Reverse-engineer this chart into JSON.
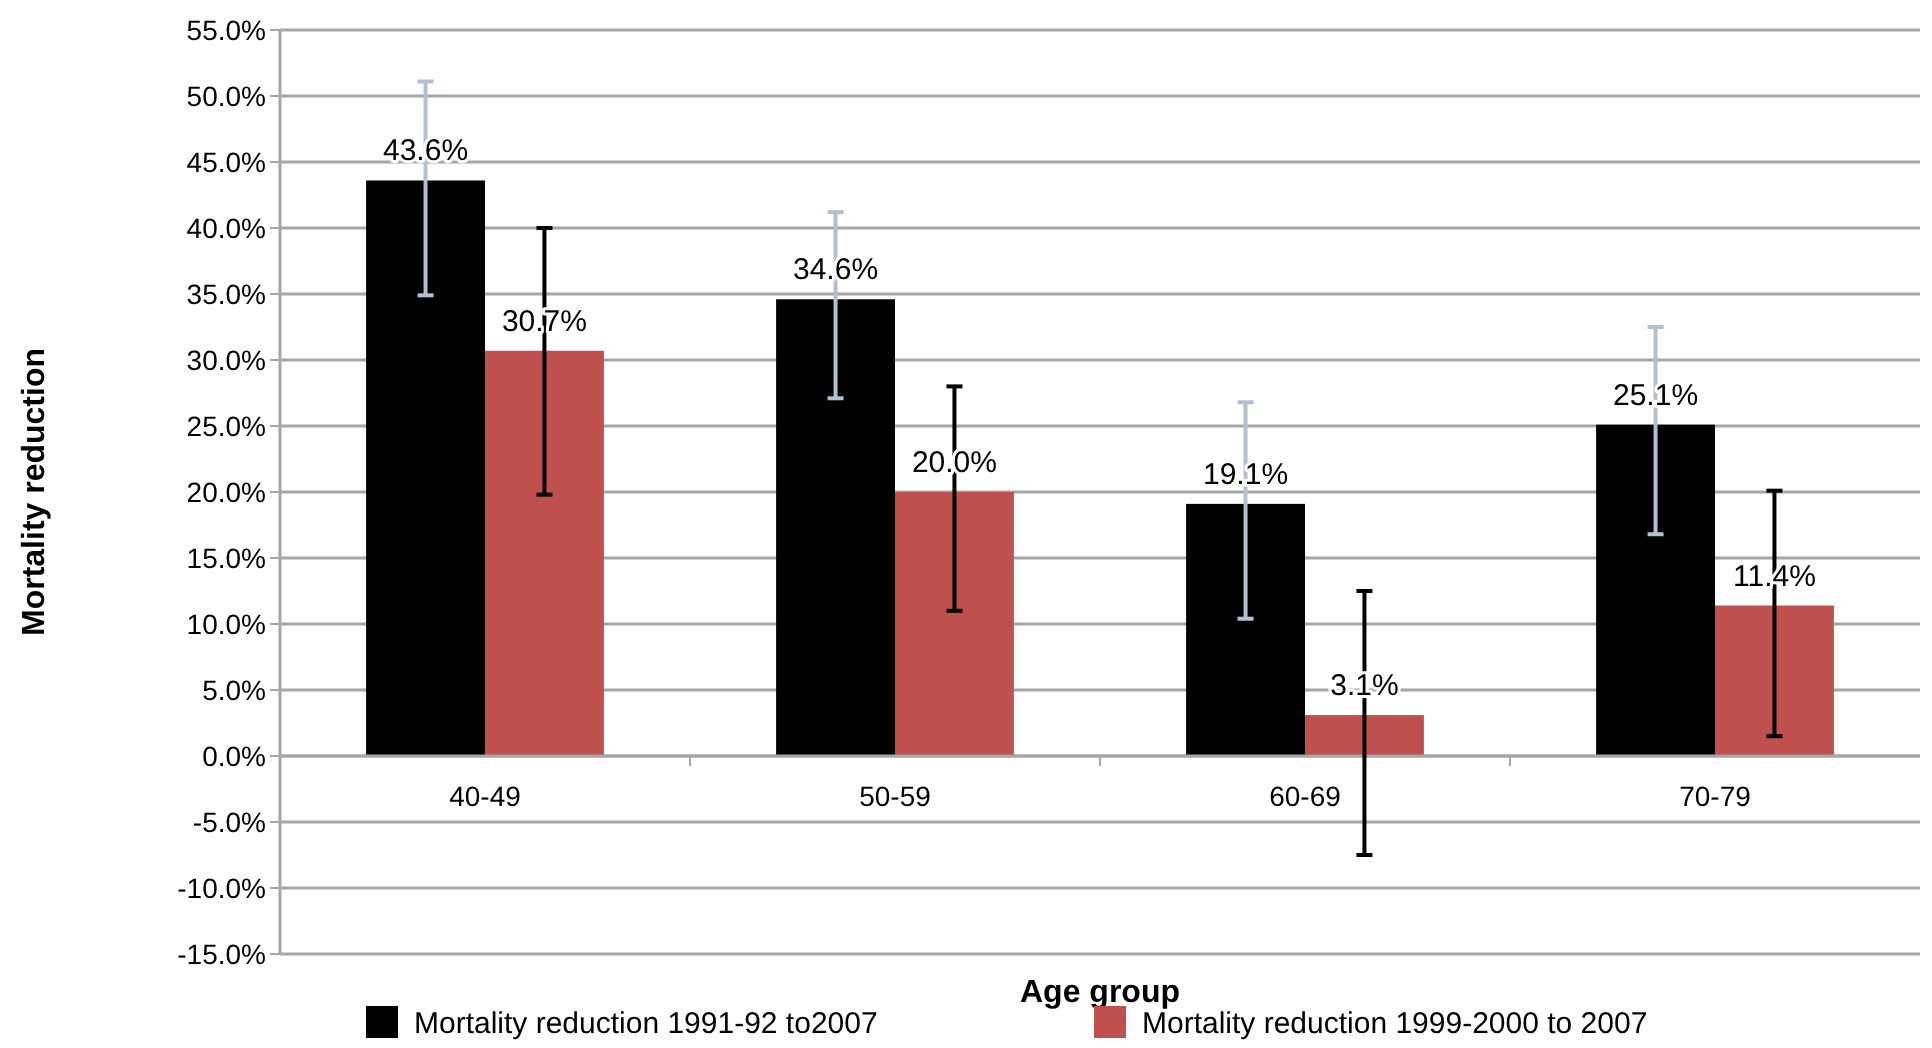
{
  "chart_data": {
    "type": "bar",
    "xlabel": "Age group",
    "ylabel": "Mortality reduction",
    "categories": [
      "40-49",
      "50-59",
      "60-69",
      "70-79"
    ],
    "series": [
      {
        "name": "Mortality reduction 1991-92 to2007",
        "color": "#000000",
        "values": [
          43.6,
          34.6,
          19.1,
          25.1
        ],
        "errors": [
          [
            34.9,
            51.1
          ],
          [
            27.1,
            41.2
          ],
          [
            10.4,
            26.8
          ],
          [
            16.8,
            32.5
          ]
        ]
      },
      {
        "name": "Mortality reduction 1999-2000 to 2007",
        "color": "#c0504d",
        "values": [
          30.7,
          20.0,
          3.1,
          11.4
        ],
        "errors": [
          [
            19.8,
            40.0
          ],
          [
            11.0,
            28.0
          ],
          [
            -7.5,
            12.5
          ],
          [
            1.5,
            20.1
          ]
        ]
      }
    ],
    "ylim": [
      -15,
      55
    ],
    "yticks": [
      {
        "value": -15,
        "label": "-15.0%"
      },
      {
        "value": -10,
        "label": "-10.0%"
      },
      {
        "value": -5,
        "label": "-5.0%"
      },
      {
        "value": 0,
        "label": "0.0%"
      },
      {
        "value": 5,
        "label": "5.0%"
      },
      {
        "value": 10,
        "label": "10.0%"
      },
      {
        "value": 15,
        "label": "15.0%"
      },
      {
        "value": 20,
        "label": "20.0%"
      },
      {
        "value": 25,
        "label": "25.0%"
      },
      {
        "value": 30,
        "label": "30.0%"
      },
      {
        "value": 35,
        "label": "35.0%"
      },
      {
        "value": 40,
        "label": "40.0%"
      },
      {
        "value": 45,
        "label": "45.0%"
      },
      {
        "value": 50,
        "label": "50.0%"
      },
      {
        "value": 55,
        "label": "55.0%"
      }
    ],
    "grid": "y",
    "legend": "bottom",
    "value_labels": [
      [
        "43.6%",
        "34.6%",
        "19.1%",
        "25.1%"
      ],
      [
        "30.7%",
        "20.0%",
        "3.1%",
        "11.4%"
      ]
    ]
  }
}
